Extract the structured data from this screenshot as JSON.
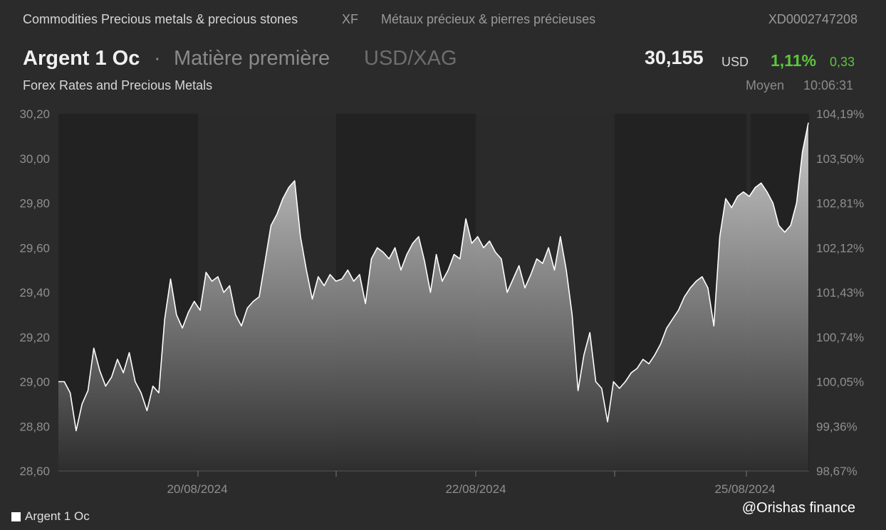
{
  "header": {
    "category": "Commodities Precious metals & precious stones",
    "exchange": "XF",
    "category_fr": "Métaux précieux & pierres précieuses",
    "isin": "XD0002747208"
  },
  "instrument": {
    "name": "Argent 1 Oc",
    "separator": "·",
    "type": "Matière première",
    "pair": "USD/XAG",
    "description": "Forex Rates and Precious Metals",
    "price": "30,155",
    "currency": "USD",
    "change_pct": "1,11%",
    "change_abs": "0,33",
    "avg_label": "Moyen",
    "time": "10:06:31"
  },
  "colors": {
    "positive": "#5cc63c",
    "line": "#ffffff",
    "background": "#2b2b2b",
    "plot_shade": "#222222"
  },
  "chart_data": {
    "type": "area",
    "title": "",
    "ylim": [
      28.6,
      30.2
    ],
    "y_ticks": [
      "30,20",
      "30,00",
      "29,80",
      "29,60",
      "29,40",
      "29,20",
      "29,00",
      "28,80",
      "28,60"
    ],
    "y_ticks_right": [
      "104,19%",
      "103,50%",
      "102,81%",
      "102,12%",
      "101,43%",
      "100,74%",
      "100,05%",
      "99,36%",
      "98,67%"
    ],
    "x_labels": [
      "20/08/2024",
      "22/08/2024",
      "25/08/2024"
    ],
    "legend": "Argent 1 Oc",
    "series": [
      {
        "name": "Argent 1 Oc",
        "values": [
          29.0,
          29.0,
          28.95,
          28.78,
          28.9,
          28.96,
          29.15,
          29.05,
          28.98,
          29.02,
          29.1,
          29.04,
          29.13,
          29.0,
          28.95,
          28.87,
          28.98,
          28.95,
          29.28,
          29.46,
          29.3,
          29.24,
          29.31,
          29.36,
          29.32,
          29.49,
          29.45,
          29.47,
          29.4,
          29.43,
          29.3,
          29.25,
          29.33,
          29.36,
          29.38,
          29.54,
          29.7,
          29.75,
          29.82,
          29.87,
          29.9,
          29.65,
          29.5,
          29.37,
          29.47,
          29.43,
          29.48,
          29.45,
          29.46,
          29.5,
          29.45,
          29.48,
          29.35,
          29.55,
          29.6,
          29.58,
          29.55,
          29.6,
          29.5,
          29.57,
          29.62,
          29.65,
          29.54,
          29.4,
          29.57,
          29.45,
          29.5,
          29.57,
          29.55,
          29.73,
          29.62,
          29.65,
          29.6,
          29.63,
          29.58,
          29.55,
          29.4,
          29.46,
          29.52,
          29.42,
          29.48,
          29.55,
          29.53,
          29.6,
          29.5,
          29.65,
          29.5,
          29.3,
          28.96,
          29.12,
          29.22,
          29.0,
          28.97,
          28.82,
          29.0,
          28.97,
          29.0,
          29.04,
          29.06,
          29.1,
          29.08,
          29.12,
          29.17,
          29.24,
          29.28,
          29.32,
          29.38,
          29.42,
          29.45,
          29.47,
          29.42,
          29.25,
          29.65,
          29.82,
          29.78,
          29.83,
          29.85,
          29.83,
          29.87,
          29.89,
          29.85,
          29.8,
          29.7,
          29.67,
          29.7,
          29.8,
          30.03,
          30.16
        ]
      }
    ]
  },
  "footer": {
    "legend_label": "Argent 1 Oc",
    "watermark": "@Orishas finance"
  }
}
